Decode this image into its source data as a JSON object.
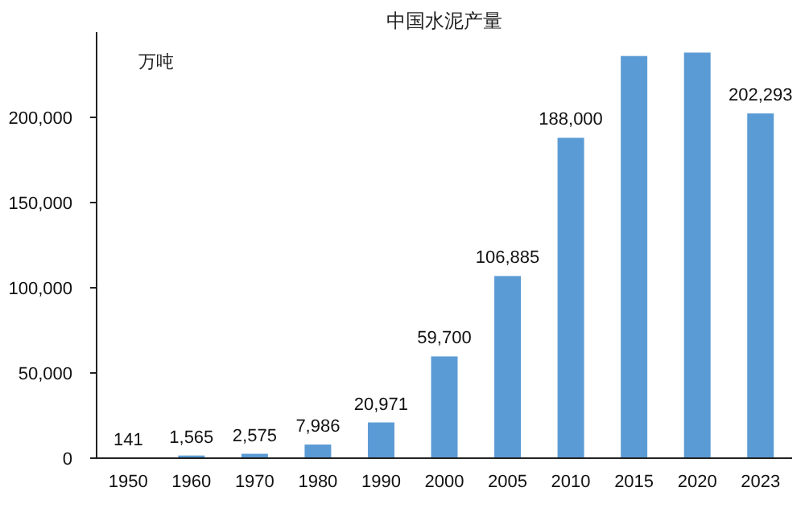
{
  "chart_data": {
    "type": "bar",
    "title": "中国水泥产量",
    "annotations": [
      "万吨"
    ],
    "categories": [
      "1950",
      "1960",
      "1970",
      "1980",
      "1990",
      "2000",
      "2005",
      "2010",
      "2015",
      "2020",
      "2023"
    ],
    "values": [
      141,
      1565,
      2575,
      7986,
      20971,
      59700,
      106885,
      188000,
      236000,
      238000,
      202293
    ],
    "value_labels": [
      "141",
      "1,565",
      "2,575",
      "7,986",
      "20,971",
      "59,700",
      "106,885",
      "188,000",
      null,
      null,
      "202,293"
    ],
    "color": "#5b9bd5",
    "ylim": [
      0,
      250000
    ],
    "yticks": [
      {
        "value": 0,
        "label": "0"
      },
      {
        "value": 50000,
        "label": "50,000"
      },
      {
        "value": 100000,
        "label": "100,000"
      },
      {
        "value": 150000,
        "label": "150,000"
      },
      {
        "value": 200000,
        "label": "200,000"
      }
    ],
    "grid": false
  }
}
